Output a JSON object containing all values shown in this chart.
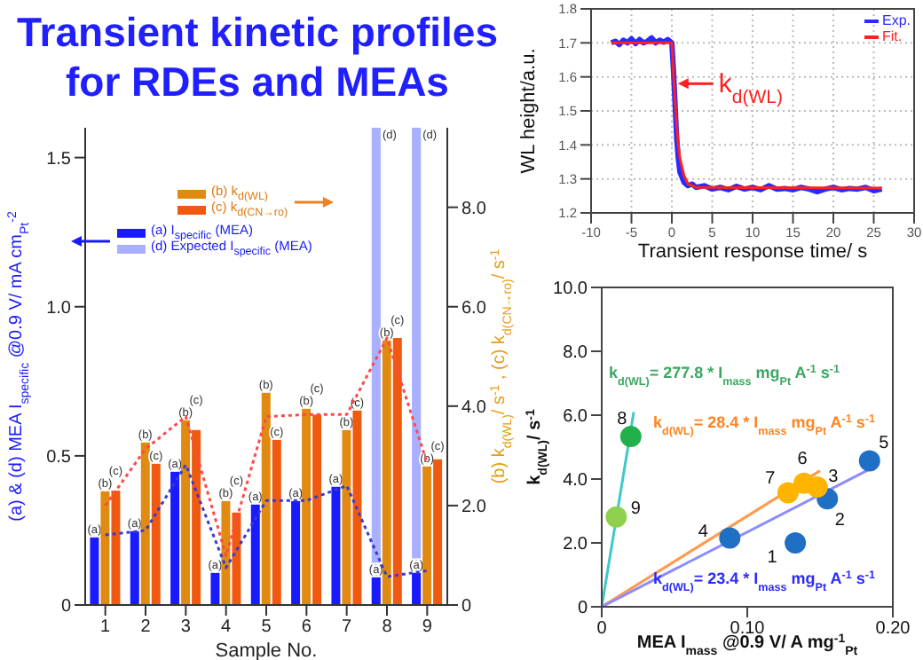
{
  "chart_data": [
    {
      "type": "bar",
      "title": "Transient kinetic profiles for RDEs and MEAs",
      "xlabel": "Sample No.",
      "ylabel": "(a) & (d) MEA I$_{specific}$ @0.9 V/ mA cm$_{Pt}$$^{-2}$",
      "y2label": "(b) k$_{d(WL)}$/ s$^{-1}$ , (c) k$_{d(CN→ro)}$/ s$^{-1}$",
      "categories": [
        "1",
        "2",
        "3",
        "4",
        "5",
        "6",
        "7",
        "8",
        "9"
      ],
      "legend": "top",
      "series": [
        {
          "name": "(a) I$_{specific}$ (MEA)",
          "type": "bar",
          "axis": "y",
          "color": "#1a1aff",
          "values": [
            0.23,
            0.25,
            0.45,
            0.11,
            0.34,
            0.35,
            0.4,
            0.095,
            0.11
          ],
          "value_labels": [
            "(a)",
            "(a)",
            "(a)",
            "(a)",
            "(a)",
            "(a)",
            "(a)",
            "(a)",
            "(a)"
          ]
        },
        {
          "name": "(d) Expected I$_{specific}$ (MEA)",
          "type": "bar",
          "axis": "y",
          "color": "#a9b0ff",
          "values": [
            null,
            null,
            null,
            null,
            null,
            null,
            null,
            1.6,
            1.6
          ],
          "value_labels": [
            null,
            null,
            null,
            null,
            null,
            null,
            null,
            "(d)",
            "(d)"
          ]
        },
        {
          "name": "(b) k$_{d(WL)}$",
          "type": "bar",
          "axis": "y2",
          "color": "#e08a12",
          "values": [
            2.3,
            3.28,
            3.73,
            2.1,
            4.28,
            3.96,
            3.54,
            5.34,
            2.81
          ],
          "value_labels": [
            "(b)",
            "(b)",
            "(b)",
            "(b)",
            "(b)",
            "(b)",
            "(b)",
            "(b)",
            "(b)"
          ]
        },
        {
          "name": "(c) k$_{d(CN→ro)}$",
          "type": "bar",
          "axis": "y2",
          "color": "#f05a10",
          "values": [
            2.3,
            2.86,
            3.52,
            1.86,
            3.33,
            3.83,
            3.93,
            5.37,
            2.93
          ],
          "value_labels": [
            "(c)",
            "(c)",
            "(c)",
            "(c)",
            "(c)",
            "(c)",
            "(c)",
            "(c)",
            "(c)"
          ]
        },
        {
          "type": "line",
          "axis": "y",
          "color": "#3a3acc",
          "line_style": "dotted",
          "values": [
            0.235,
            0.25,
            0.47,
            0.125,
            0.35,
            0.35,
            0.4,
            0.095,
            0.115
          ]
        },
        {
          "type": "line",
          "axis": "y2",
          "color": "#ff4848",
          "line_style": "dotted",
          "values": [
            2.0,
            3.14,
            3.79,
            0.99,
            3.79,
            3.83,
            3.83,
            5.37,
            2.85
          ]
        }
      ],
      "ylim": [
        0,
        1.6
      ],
      "yticks": [
        0,
        0.5,
        {
          "value": 1,
          "label": "1.0"
        },
        1.5
      ],
      "y2lim": [
        0,
        9.6
      ],
      "y2ticks": [
        0,
        {
          "value": 2,
          "label": "2.0"
        },
        {
          "value": 4,
          "label": "4.0"
        },
        {
          "value": 6,
          "label": "6.0"
        },
        {
          "value": 8,
          "label": "8.0"
        }
      ]
    },
    {
      "type": "line",
      "xlabel": "Transient response time/ s",
      "ylabel": "WL height/a.u.",
      "legend": "top right",
      "grid": true,
      "marker": "none",
      "annotations": [
        {
          "text": "k$_{d(WL)}$",
          "x": 0.3,
          "y": 1.58
        }
      ],
      "series": [
        {
          "name": "Exp.",
          "color": "#2a2aff",
          "x": [
            -7.5,
            -7,
            -6.5,
            -6,
            -5.5,
            -5,
            -4.5,
            -4,
            -3.5,
            -3,
            -2.5,
            -2,
            -1.5,
            -1,
            -0.5,
            0,
            0.2,
            0.4,
            0.6,
            0.8,
            1,
            1.5,
            2,
            2.5,
            3,
            4,
            5,
            6,
            7,
            8,
            9,
            10,
            11,
            12,
            13,
            14,
            15,
            16,
            17,
            18,
            19,
            20,
            21,
            22,
            23,
            24,
            25,
            26
          ],
          "values": [
            1.7,
            1.705,
            1.695,
            1.708,
            1.7,
            1.712,
            1.698,
            1.71,
            1.7,
            1.705,
            1.715,
            1.7,
            1.708,
            1.702,
            1.71,
            1.7,
            1.62,
            1.52,
            1.42,
            1.36,
            1.32,
            1.29,
            1.28,
            1.285,
            1.275,
            1.28,
            1.27,
            1.275,
            1.268,
            1.278,
            1.27,
            1.275,
            1.268,
            1.28,
            1.27,
            1.272,
            1.268,
            1.275,
            1.27,
            1.262,
            1.27,
            1.275,
            1.268,
            1.272,
            1.27,
            1.275,
            1.265,
            1.27
          ]
        },
        {
          "name": "Fit.",
          "color": "#ff2020",
          "x": [
            -7.5,
            0,
            0.2,
            0.4,
            0.6,
            0.8,
            1,
            1.5,
            2,
            3,
            26
          ],
          "values": [
            1.7,
            1.7,
            1.61,
            1.53,
            1.46,
            1.4,
            1.36,
            1.31,
            1.285,
            1.275,
            1.273
          ]
        }
      ],
      "xlim": [
        -10,
        30
      ],
      "xticks": [
        -10,
        -5,
        0,
        5,
        10,
        15,
        20,
        25,
        30
      ],
      "ylim": [
        1.2,
        1.8
      ],
      "yticks": [
        1.2,
        1.3,
        1.4,
        1.5,
        1.6,
        1.7,
        1.8
      ]
    },
    {
      "type": "scatter",
      "xlabel": "MEA I$_{mass}$ @0.9 V/ A mg$^{-1}$$_{Pt}$",
      "ylabel": "k$_{d(WL)}$/ s$^{-1}$",
      "marker": "circle",
      "annotations": [
        "k$_{d(WL)}$= 277.8 * I$_{mass}$  mg$_{Pt}$ A$^{-1}$ s$^{-1}$",
        "k$_{d(WL)}$= 28.4 * I$_{mass}$  mg$_{Pt}$ A$^{-1}$ s$^{-1}$",
        "k$_{d(WL)}$= 23.4 * I$_{mass}$  mg$_{Pt}$ A$^{-1}$ s$^{-1}$",
        {
          "text": "1",
          "x": 0.133,
          "y": 2.0
        },
        {
          "text": "2",
          "x": 0.155,
          "y": 3.38
        },
        {
          "text": "3",
          "x": 0.148,
          "y": 3.75
        },
        {
          "text": "4",
          "x": 0.088,
          "y": 2.15
        },
        {
          "text": "5",
          "x": 0.184,
          "y": 4.57
        },
        {
          "text": "6",
          "x": 0.139,
          "y": 3.87
        },
        {
          "text": "7",
          "x": 0.128,
          "y": 3.57
        },
        {
          "text": "8",
          "x": 0.02,
          "y": 5.33
        },
        {
          "text": "9",
          "x": 0.01,
          "y": 2.81
        }
      ],
      "series": [
        {
          "type": "line",
          "marker": "none",
          "color": "#40c8c8",
          "x": [
            0,
            0.022
          ],
          "values": [
            0,
            6.1
          ]
        },
        {
          "type": "line",
          "marker": "none",
          "color": "#ff9a50",
          "x": [
            0,
            0.15
          ],
          "values": [
            0,
            4.26
          ]
        },
        {
          "type": "line",
          "marker": "none",
          "color": "#8c8cff",
          "x": [
            0,
            0.19
          ],
          "values": [
            0,
            4.45
          ]
        },
        {
          "color": "#1f6fc5",
          "x": [
            0.133,
            0.155,
            0.088,
            0.184
          ],
          "values": [
            2.0,
            3.38,
            2.15,
            4.57
          ]
        },
        {
          "color": "#ffb400",
          "x": [
            0.148,
            0.139,
            0.128
          ],
          "values": [
            3.75,
            3.87,
            3.57
          ]
        },
        {
          "color": "#22b04a",
          "x": [
            0.02
          ],
          "values": [
            5.33
          ]
        },
        {
          "color": "#8fd14f",
          "x": [
            0.01
          ],
          "values": [
            2.81
          ]
        }
      ],
      "xlim": [
        0,
        0.2
      ],
      "xticks": [
        0,
        {
          "value": 0.1,
          "label": "0.10"
        },
        {
          "value": 0.2,
          "label": "0.20"
        }
      ],
      "ylim": [
        0,
        10
      ],
      "yticks": [
        0,
        {
          "value": 2,
          "label": "2.0"
        },
        {
          "value": 4,
          "label": "4.0"
        },
        {
          "value": 6,
          "label": "6.0"
        },
        {
          "value": 8,
          "label": "8.0"
        },
        {
          "value": 10,
          "label": "10.0"
        }
      ]
    }
  ]
}
